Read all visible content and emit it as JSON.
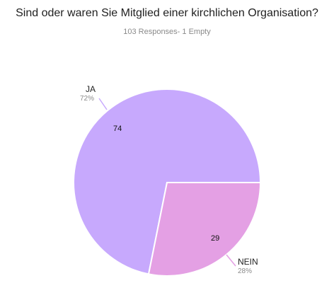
{
  "title": "Sind oder waren Sie Mitglied einer kirchlichen Organisation?",
  "subtitle": "103 Responses- 1 Empty",
  "chart_data": {
    "type": "pie",
    "title": "Sind oder waren Sie Mitglied einer kirchlichen Organisation?",
    "categories": [
      "JA",
      "NEIN"
    ],
    "values": [
      74,
      29
    ],
    "percent_labels": [
      "72%",
      "28%"
    ],
    "value_labels": [
      "74",
      "29"
    ],
    "colors": [
      "#c7a9fd",
      "#e4a0e4"
    ],
    "legend": "none"
  }
}
